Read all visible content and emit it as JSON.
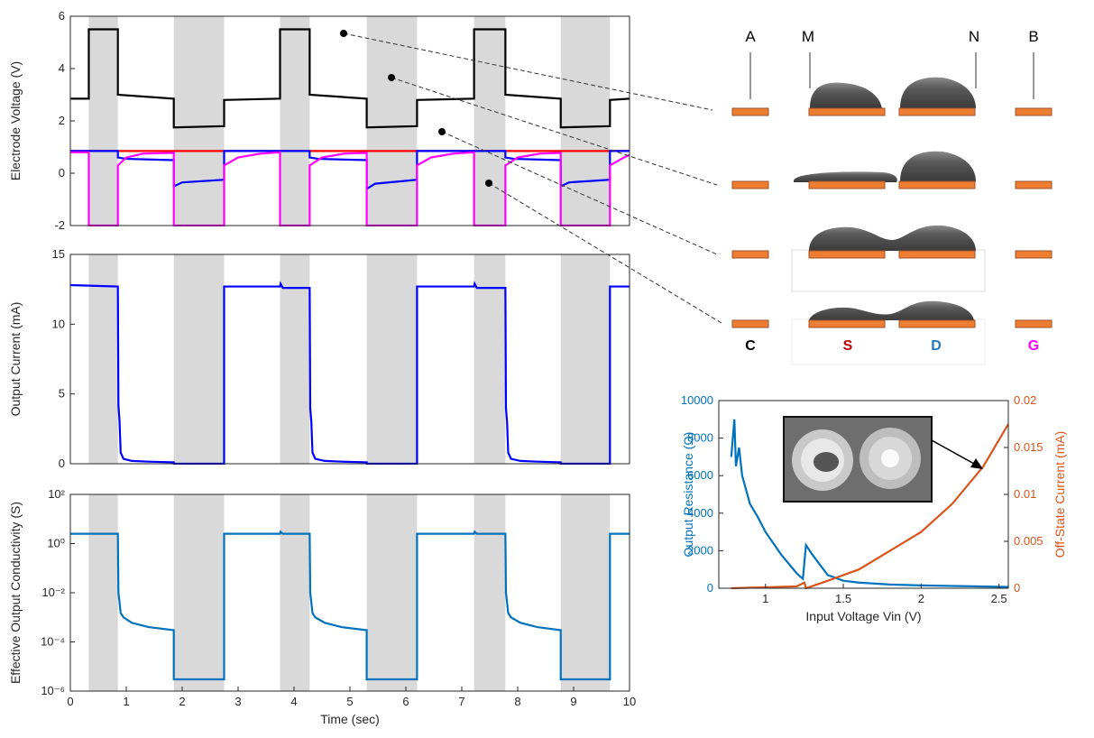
{
  "chart_data": [
    {
      "type": "line",
      "ylabel": "Electrode Voltage (V)",
      "xlim": [
        0,
        10
      ],
      "ylim": [
        -2,
        6
      ],
      "yticks": [
        -2,
        0,
        2,
        4,
        6
      ],
      "shaded_regions": [
        [
          0.33,
          0.85
        ],
        [
          1.85,
          2.75
        ],
        [
          3.75,
          4.28
        ],
        [
          5.3,
          6.2
        ],
        [
          7.22,
          7.78
        ],
        [
          8.77,
          9.65
        ]
      ],
      "shade_color": "#d9d9d9",
      "series": [
        {
          "color": "#000000",
          "x": [
            0,
            0.33,
            0.33,
            0.85,
            0.85,
            1.85,
            1.85,
            2.75,
            2.75,
            3.75,
            3.75,
            4.28,
            4.28,
            5.3,
            5.3,
            6.2,
            6.2,
            7.22,
            7.22,
            7.78,
            7.78,
            8.77,
            8.77,
            9.65,
            9.65,
            10
          ],
          "values": [
            2.85,
            2.85,
            5.5,
            5.5,
            3.0,
            2.85,
            1.75,
            1.8,
            2.8,
            2.85,
            5.5,
            5.5,
            3.0,
            2.85,
            1.75,
            1.8,
            2.8,
            2.85,
            5.5,
            5.5,
            3.0,
            2.85,
            1.75,
            1.8,
            2.8,
            2.85
          ]
        },
        {
          "color": "#ff0000",
          "x": [
            0,
            10
          ],
          "values": [
            0.85,
            0.85
          ]
        },
        {
          "color": "#0000ff",
          "x": [
            0,
            0.85,
            0.85,
            1.0,
            1.85,
            1.85,
            2.0,
            2.75,
            2.75,
            3.75,
            4.28,
            4.28,
            4.43,
            5.3,
            5.3,
            5.45,
            6.2,
            6.2,
            7.22,
            7.78,
            7.78,
            7.93,
            8.77,
            8.77,
            8.92,
            9.65,
            9.65,
            10
          ],
          "values": [
            0.85,
            0.85,
            0.6,
            0.55,
            0.5,
            -0.5,
            -0.35,
            -0.25,
            0.85,
            0.85,
            0.85,
            0.6,
            0.55,
            0.5,
            -0.6,
            -0.4,
            -0.25,
            0.85,
            0.85,
            0.85,
            0.6,
            0.55,
            0.5,
            -0.5,
            -0.35,
            -0.25,
            0.85,
            0.85
          ]
        },
        {
          "color": "#ff00ff",
          "x": [
            0,
            0.33,
            0.33,
            0.85,
            0.85,
            1.0,
            1.3,
            1.85,
            1.85,
            2.75,
            2.75,
            3.0,
            3.4,
            3.75,
            3.75,
            4.28,
            4.28,
            4.5,
            4.9,
            5.3,
            5.3,
            6.2,
            6.2,
            6.45,
            6.85,
            7.22,
            7.22,
            7.78,
            7.78,
            8.0,
            8.4,
            8.77,
            8.77,
            9.65,
            9.65,
            9.9,
            10
          ],
          "values": [
            0.8,
            0.8,
            -2,
            -2,
            0.3,
            0.6,
            0.75,
            0.78,
            -2,
            -2,
            0.3,
            0.6,
            0.75,
            0.8,
            -2,
            -2,
            0.3,
            0.6,
            0.75,
            0.78,
            -2,
            -2,
            0.3,
            0.6,
            0.75,
            0.8,
            -2,
            -2,
            0.3,
            0.6,
            0.75,
            0.78,
            -2,
            -2,
            0.3,
            0.6,
            0.7
          ]
        }
      ]
    },
    {
      "type": "line",
      "ylabel": "Output Current (mA)",
      "xlim": [
        0,
        10
      ],
      "ylim": [
        0,
        15
      ],
      "yticks": [
        0,
        5,
        10,
        15
      ],
      "shaded_regions": [
        [
          0.33,
          0.85
        ],
        [
          1.85,
          2.75
        ],
        [
          3.75,
          4.28
        ],
        [
          5.3,
          6.2
        ],
        [
          7.22,
          7.78
        ],
        [
          8.77,
          9.65
        ]
      ],
      "shade_color": "#d9d9d9",
      "series": [
        {
          "color": "#0000ff",
          "x": [
            0,
            0.85,
            0.86,
            0.88,
            0.9,
            0.95,
            1.1,
            1.4,
            1.85,
            1.85,
            2.75,
            2.75,
            3.75,
            3.76,
            3.8,
            4.28,
            4.29,
            4.31,
            4.33,
            4.38,
            4.55,
            4.85,
            5.3,
            5.3,
            6.2,
            6.2,
            7.22,
            7.23,
            7.27,
            7.78,
            7.79,
            7.81,
            7.83,
            7.88,
            8.05,
            8.35,
            8.77,
            8.77,
            9.65,
            9.65,
            10
          ],
          "values": [
            12.8,
            12.7,
            4.2,
            3,
            0.8,
            0.35,
            0.2,
            0.15,
            0.1,
            0,
            0,
            12.7,
            12.7,
            12.9,
            12.6,
            12.6,
            4,
            3,
            0.8,
            0.35,
            0.2,
            0.15,
            0.1,
            0,
            0,
            12.7,
            12.7,
            12.9,
            12.6,
            12.6,
            4,
            3,
            0.8,
            0.35,
            0.2,
            0.15,
            0.1,
            0,
            0,
            12.7,
            12.7
          ]
        }
      ]
    },
    {
      "type": "line",
      "ylabel": "Effective Output Conductivity (S)",
      "xlabel": "Time (sec)",
      "xlim": [
        0,
        10
      ],
      "xticks": [
        0,
        1,
        2,
        3,
        4,
        5,
        6,
        7,
        8,
        9,
        10
      ],
      "yscale": "log",
      "ylim": [
        1e-06,
        100
      ],
      "yticks": [
        {
          "value": 1e-06,
          "label": "10⁻⁶"
        },
        {
          "value": 0.0001,
          "label": "10⁻⁴"
        },
        {
          "value": 0.01,
          "label": "10⁻²"
        },
        {
          "value": 1,
          "label": "10⁰"
        },
        {
          "value": 100,
          "label": "10²"
        }
      ],
      "shaded_regions": [
        [
          0.33,
          0.85
        ],
        [
          1.85,
          2.75
        ],
        [
          3.75,
          4.28
        ],
        [
          5.3,
          6.2
        ],
        [
          7.22,
          7.78
        ],
        [
          8.77,
          9.65
        ]
      ],
      "shade_color": "#d9d9d9",
      "series": [
        {
          "color": "#0072bd",
          "x": [
            0,
            0.85,
            0.86,
            0.88,
            0.9,
            0.95,
            1.1,
            1.4,
            1.85,
            1.85,
            2.75,
            2.75,
            3.75,
            3.76,
            3.8,
            4.28,
            4.29,
            4.31,
            4.33,
            4.38,
            4.55,
            4.85,
            5.3,
            5.3,
            6.2,
            6.2,
            7.22,
            7.23,
            7.27,
            7.78,
            7.79,
            7.81,
            7.83,
            7.88,
            8.05,
            8.35,
            8.77,
            8.77,
            9.65,
            9.65,
            10
          ],
          "values": [
            2.5,
            2.5,
            0.01,
            0.004,
            0.0015,
            0.001,
            0.0006,
            0.0004,
            0.0003,
            3e-06,
            3e-06,
            2.5,
            2.5,
            3,
            2.5,
            2.5,
            0.01,
            0.004,
            0.0015,
            0.001,
            0.0006,
            0.0004,
            0.0003,
            3e-06,
            3e-06,
            2.5,
            2.5,
            3,
            2.5,
            2.5,
            0.01,
            0.004,
            0.0015,
            0.001,
            0.0006,
            0.0004,
            0.0003,
            3e-06,
            3e-06,
            2.5,
            2.5
          ]
        }
      ]
    },
    {
      "type": "line",
      "xlabel": "Input Voltage Vin (V)",
      "ylabel": "Output Resistance (Ω)",
      "y2label": "Off-State Current (mA)",
      "ycolor": "#0072bd",
      "y2color": "#d95319",
      "xlim": [
        0.7,
        2.56
      ],
      "xticks": [
        1,
        1.5,
        2,
        2.5
      ],
      "ylim": [
        0,
        10000
      ],
      "yticks": [
        0,
        2000,
        4000,
        6000,
        8000,
        10000
      ],
      "y2lim": [
        0,
        0.02
      ],
      "y2ticks": [
        0,
        0.005,
        0.01,
        0.015,
        0.02
      ],
      "series": [
        {
          "color": "#0072bd",
          "x": [
            0.78,
            0.8,
            0.81,
            0.83,
            0.85,
            0.9,
            0.95,
            1.0,
            1.1,
            1.2,
            1.24,
            1.26,
            1.3,
            1.4,
            1.5,
            1.6,
            1.8,
            2.0,
            2.5,
            2.56
          ],
          "values": [
            7000,
            9000,
            6500,
            7500,
            6000,
            4500,
            3800,
            3000,
            1800,
            800,
            500,
            2300,
            1800,
            700,
            400,
            300,
            200,
            150,
            80,
            70
          ]
        },
        {
          "color": "#d95319",
          "axis": "y2",
          "x": [
            0.78,
            1.2,
            1.25,
            1.26,
            1.4,
            1.6,
            1.8,
            2.0,
            2.2,
            2.4,
            2.56
          ],
          "values": [
            0,
            0.0002,
            0.0006,
            0,
            0.0008,
            0.002,
            0.004,
            0.006,
            0.009,
            0.013,
            0.0175
          ]
        }
      ]
    }
  ],
  "diagram": {
    "top_labels": [
      "A",
      "M",
      "N",
      "B"
    ],
    "bottom_labels": [
      "C",
      "S",
      "D",
      "G"
    ]
  }
}
